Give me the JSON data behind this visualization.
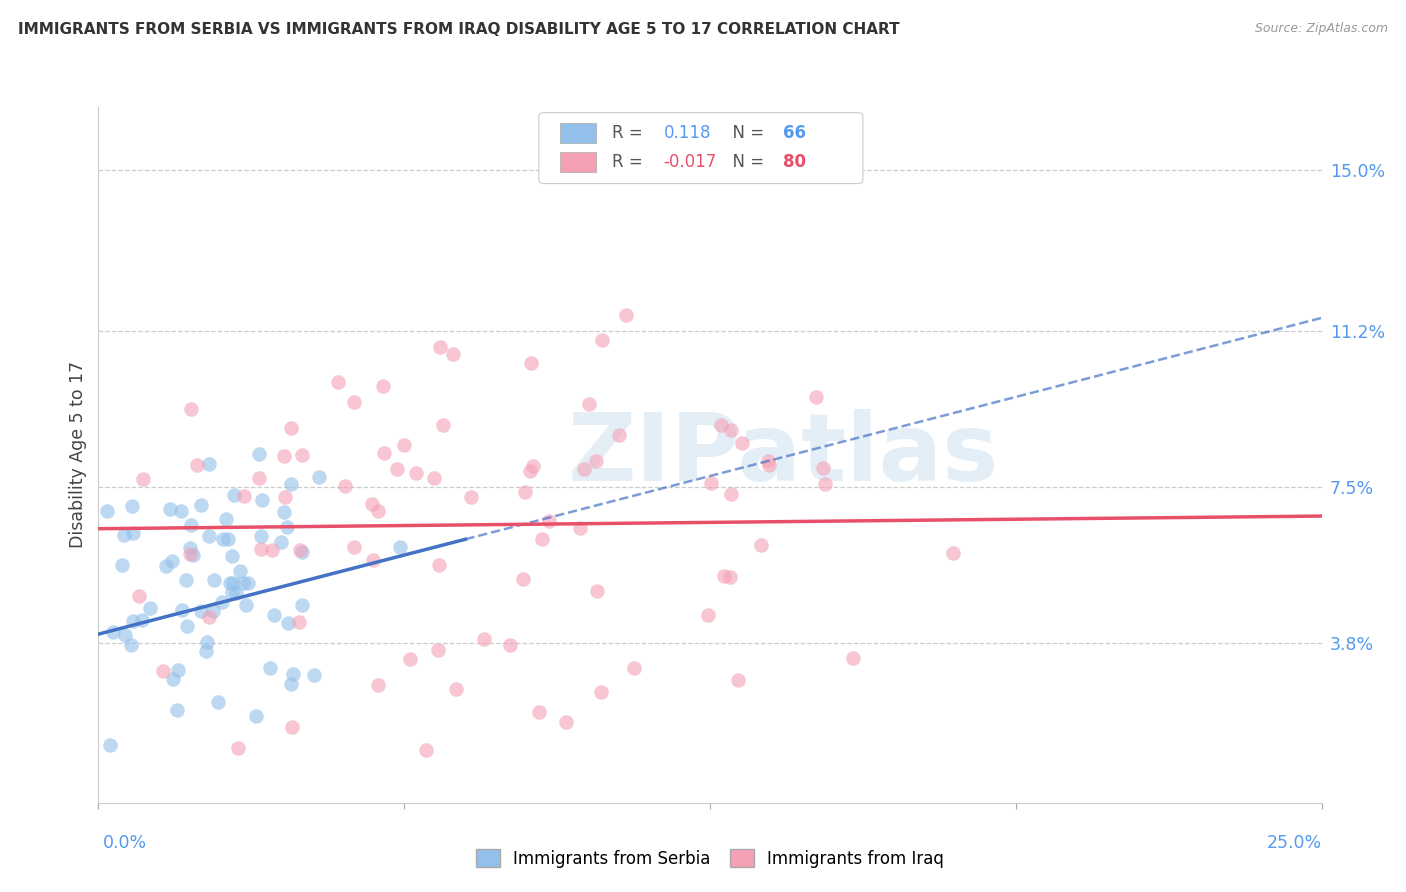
{
  "title": "IMMIGRANTS FROM SERBIA VS IMMIGRANTS FROM IRAQ DISABILITY AGE 5 TO 17 CORRELATION CHART",
  "source": "Source: ZipAtlas.com",
  "ylabel": "Disability Age 5 to 17",
  "ytick_labels": [
    "3.8%",
    "7.5%",
    "11.2%",
    "15.0%"
  ],
  "ytick_values": [
    0.038,
    0.075,
    0.112,
    0.15
  ],
  "xtick_labels": [
    "0.0%",
    "25.0%"
  ],
  "xlim": [
    0.0,
    0.25
  ],
  "ylim": [
    0.0,
    0.165
  ],
  "legend_serbia_R": "0.118",
  "legend_serbia_N": "66",
  "legend_iraq_R": "-0.017",
  "legend_iraq_N": "80",
  "color_serbia": "#92C0EA",
  "color_iraq": "#F4A0B5",
  "color_serbia_line": "#4472C4",
  "color_iraq_line": "#E8506A",
  "watermark_text": "ZIPatlas",
  "bottom_legend_serbia": "Immigrants from Serbia",
  "bottom_legend_iraq": "Immigrants from Iraq"
}
